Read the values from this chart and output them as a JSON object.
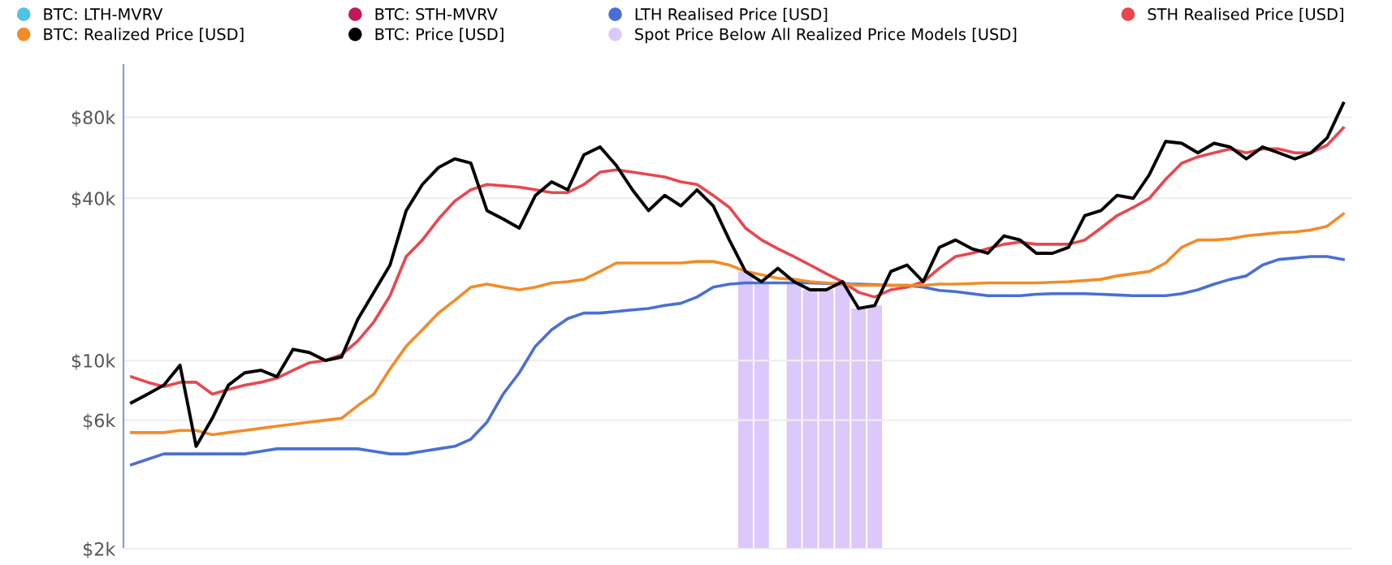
{
  "chart_data": {
    "type": "line",
    "categories": [
      null,
      null,
      null,
      null,
      null,
      null,
      null,
      null,
      null,
      null,
      null,
      null,
      null,
      null,
      null,
      null,
      null,
      null,
      null,
      null,
      null,
      null,
      null,
      null,
      null,
      null,
      null,
      null,
      null,
      null,
      null,
      null,
      null,
      null,
      null,
      null,
      null,
      null,
      null,
      null,
      null,
      null,
      null,
      null,
      null,
      null,
      null,
      null,
      null,
      null,
      null,
      null,
      null,
      null,
      null,
      null,
      null,
      null,
      null,
      null,
      null,
      null,
      null,
      null,
      null,
      null,
      null,
      null,
      null,
      null,
      null,
      null,
      null,
      null,
      null,
      null
    ],
    "log": true,
    "ylim": [
      2000,
      125000
    ],
    "yticks": [
      {
        "value": 2000,
        "label": "$2k"
      },
      {
        "value": 6000,
        "label": "$6k"
      },
      {
        "value": 10000,
        "label": "$10k"
      },
      {
        "value": 40000,
        "label": "$40k"
      },
      {
        "value": 80000,
        "label": "$80k"
      }
    ],
    "grid": "y",
    "legend": "top",
    "marker": "none",
    "line_style": "solid",
    "series": [
      {
        "name": "BTC: LTH-MVRV",
        "color": "#4fc3e8",
        "values": [
          null,
          null,
          null,
          null,
          null,
          null,
          null,
          null,
          null,
          null,
          null,
          null,
          null,
          null,
          null,
          null,
          null,
          null,
          null,
          null,
          null,
          null,
          null,
          null,
          null,
          null,
          null,
          null,
          null,
          null,
          null,
          null,
          null,
          null,
          null,
          null,
          null,
          null,
          null,
          null,
          null,
          null,
          null,
          null,
          null,
          null,
          null,
          null,
          null,
          null,
          null,
          null,
          null,
          null,
          null,
          null,
          null,
          null,
          null,
          null,
          null,
          null,
          null,
          null,
          null,
          null,
          null,
          null,
          null,
          null,
          null,
          null,
          null,
          null,
          null,
          null
        ]
      },
      {
        "name": "BTC: STH-MVRV",
        "color": "#c2185b",
        "values": [
          null,
          null,
          null,
          null,
          null,
          null,
          null,
          null,
          null,
          null,
          null,
          null,
          null,
          null,
          null,
          null,
          null,
          null,
          null,
          null,
          null,
          null,
          null,
          null,
          null,
          null,
          null,
          null,
          null,
          null,
          null,
          null,
          null,
          null,
          null,
          null,
          null,
          null,
          null,
          null,
          null,
          null,
          null,
          null,
          null,
          null,
          null,
          null,
          null,
          null,
          null,
          null,
          null,
          null,
          null,
          null,
          null,
          null,
          null,
          null,
          null,
          null,
          null,
          null,
          null,
          null,
          null,
          null,
          null,
          null,
          null,
          null,
          null,
          null,
          null,
          null
        ]
      },
      {
        "name": "LTH Realised Price [USD]",
        "color": "#4a6fd4",
        "values": [
          4100,
          4300,
          4500,
          4500,
          4500,
          4500,
          4500,
          4500,
          4600,
          4700,
          4700,
          4700,
          4700,
          4700,
          4700,
          4600,
          4500,
          4500,
          4600,
          4700,
          4800,
          5100,
          5900,
          7500,
          9000,
          11300,
          13000,
          14300,
          15000,
          15000,
          15200,
          15400,
          15600,
          16000,
          16300,
          17200,
          18700,
          19200,
          19400,
          19400,
          19400,
          19400,
          19400,
          19300,
          19200,
          19200,
          19100,
          19000,
          19000,
          18700,
          18200,
          18000,
          17700,
          17400,
          17400,
          17400,
          17600,
          17700,
          17700,
          17700,
          17600,
          17500,
          17400,
          17400,
          17400,
          17700,
          18300,
          19200,
          20000,
          20600,
          22600,
          23700,
          24000,
          24300,
          24300,
          23700
        ]
      },
      {
        "name": "STH Realised Price [USD]",
        "color": "#e8474f",
        "values": [
          8700,
          8300,
          8000,
          8300,
          8300,
          7500,
          7800,
          8100,
          8300,
          8600,
          9200,
          9800,
          10000,
          10500,
          11800,
          13900,
          17400,
          24300,
          28000,
          33500,
          39000,
          43000,
          45000,
          44500,
          44000,
          43000,
          42000,
          42000,
          45000,
          50000,
          51000,
          50000,
          49000,
          48000,
          46000,
          45000,
          41000,
          37000,
          31000,
          28000,
          26000,
          24300,
          22600,
          21000,
          19600,
          17900,
          17200,
          18300,
          18700,
          19600,
          22000,
          24300,
          25000,
          26000,
          27000,
          27500,
          27000,
          27000,
          27000,
          28000,
          31000,
          34500,
          37000,
          40000,
          47000,
          54000,
          57000,
          59000,
          61000,
          59000,
          61000,
          61000,
          59000,
          59000,
          63000,
          73000
        ]
      },
      {
        "name": "BTC: Realized Price [USD]",
        "color": "#f28c28",
        "values": [
          5400,
          5400,
          5400,
          5500,
          5500,
          5300,
          5400,
          5500,
          5600,
          5700,
          5800,
          5900,
          6000,
          6100,
          6800,
          7500,
          9300,
          11300,
          13000,
          15000,
          16700,
          18700,
          19200,
          18700,
          18300,
          18700,
          19400,
          19600,
          20000,
          21400,
          23000,
          23000,
          23000,
          23000,
          23000,
          23300,
          23300,
          22600,
          21400,
          20800,
          20200,
          20000,
          19600,
          19400,
          19200,
          19000,
          19000,
          19000,
          19000,
          19000,
          19200,
          19200,
          19300,
          19400,
          19400,
          19400,
          19400,
          19500,
          19600,
          19800,
          20000,
          20600,
          21000,
          21400,
          23000,
          26300,
          28000,
          28000,
          28300,
          29000,
          29400,
          29800,
          30000,
          30500,
          31500,
          35000
        ]
      },
      {
        "name": "BTC: Price [USD]",
        "color": "#000000",
        "values": [
          6970,
          7500,
          8100,
          9600,
          4800,
          6100,
          8100,
          9000,
          9200,
          8700,
          11000,
          10700,
          10000,
          10300,
          14200,
          17900,
          22600,
          36000,
          45000,
          52000,
          56000,
          54000,
          36000,
          33500,
          31000,
          41000,
          46000,
          43000,
          58000,
          62000,
          53000,
          43000,
          36000,
          41000,
          37500,
          43000,
          37500,
          28000,
          21400,
          19600,
          22000,
          19600,
          18300,
          18300,
          19600,
          15600,
          16000,
          21400,
          22600,
          19600,
          26300,
          28000,
          26000,
          25000,
          29000,
          28000,
          25000,
          25000,
          26300,
          34500,
          36000,
          41000,
          40000,
          49000,
          65000,
          64000,
          59000,
          64000,
          62000,
          56000,
          62000,
          59000,
          56000,
          59000,
          67000,
          90000
        ]
      },
      {
        "name": "Spot Price Below All Realized Price Models [USD]",
        "color": "#dcc8fa",
        "type": "bar",
        "values": [
          null,
          null,
          null,
          null,
          null,
          null,
          null,
          null,
          null,
          null,
          null,
          null,
          null,
          null,
          null,
          null,
          null,
          null,
          null,
          null,
          null,
          null,
          null,
          null,
          null,
          null,
          null,
          null,
          null,
          null,
          null,
          null,
          null,
          null,
          null,
          null,
          null,
          null,
          21400,
          19600,
          null,
          19600,
          18300,
          18300,
          19600,
          15600,
          16000,
          null,
          null,
          null,
          null,
          null,
          null,
          null,
          null,
          null,
          null,
          null,
          null,
          null,
          null,
          null,
          null,
          null,
          null,
          null,
          null,
          null,
          null,
          null,
          null,
          null,
          null,
          null,
          null,
          null
        ]
      }
    ]
  }
}
